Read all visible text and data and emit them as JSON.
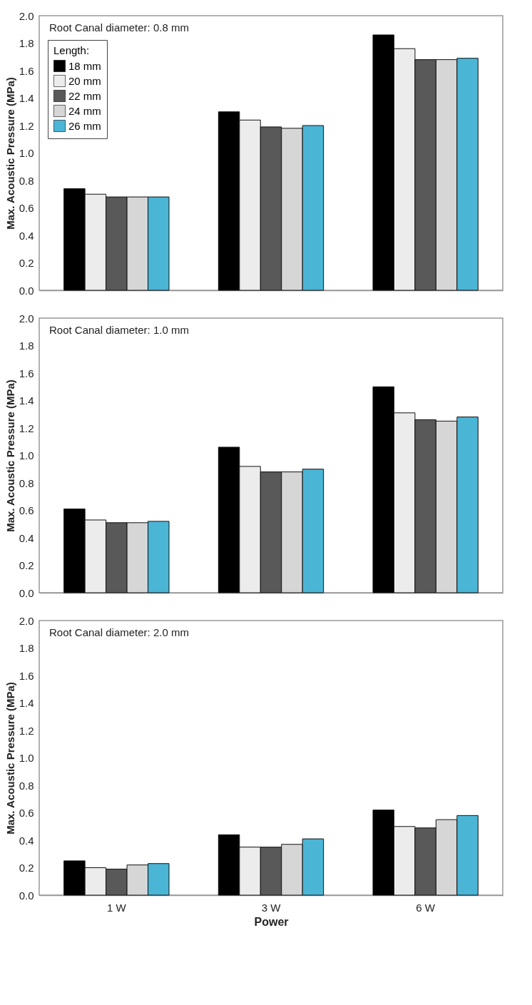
{
  "chart_data": [
    {
      "type": "bar",
      "categories": [
        null,
        null,
        null
      ],
      "ylabel": "Max. Acoustic Pressure (MPa)",
      "ylim": [
        0,
        2
      ],
      "yticks": [
        {
          "value": 0,
          "label": "0.0"
        },
        0.2,
        0.4,
        0.6,
        0.8,
        {
          "value": 1,
          "label": "1.0"
        },
        1.2,
        1.4,
        1.6,
        1.8,
        {
          "value": 2,
          "label": "2.0"
        }
      ],
      "grid": false,
      "tick_labels": "y",
      "legend": "top left",
      "legend_title": "Length:",
      "annotations": [
        "Root Canal diameter: 0.8 mm"
      ],
      "series": [
        {
          "name": "18 mm",
          "color": "#000000",
          "values": [
            0.74,
            1.3,
            1.86
          ]
        },
        {
          "name": "20 mm",
          "color": "#ececec",
          "values": [
            0.7,
            1.24,
            1.76
          ]
        },
        {
          "name": "22 mm",
          "color": "#595959",
          "values": [
            0.68,
            1.19,
            1.68
          ]
        },
        {
          "name": "24 mm",
          "color": "#d6d6d6",
          "values": [
            0.68,
            1.18,
            1.68
          ]
        },
        {
          "name": "26 mm",
          "color": "#4bb5d6",
          "values": [
            0.68,
            1.2,
            1.69
          ]
        }
      ]
    },
    {
      "type": "bar",
      "categories": [
        null,
        null,
        null
      ],
      "ylabel": "Max. Acoustic Pressure (MPa)",
      "ylim": [
        0,
        2
      ],
      "yticks": [
        {
          "value": 0,
          "label": "0.0"
        },
        0.2,
        0.4,
        0.6,
        0.8,
        {
          "value": 1,
          "label": "1.0"
        },
        1.2,
        1.4,
        1.6,
        1.8,
        {
          "value": 2,
          "label": "2.0"
        }
      ],
      "grid": false,
      "tick_labels": "y",
      "annotations": [
        "Root Canal diameter: 1.0 mm"
      ],
      "series": [
        {
          "color": "#000000",
          "values": [
            0.61,
            1.06,
            1.5
          ]
        },
        {
          "color": "#ececec",
          "values": [
            0.53,
            0.92,
            1.31
          ]
        },
        {
          "color": "#595959",
          "values": [
            0.51,
            0.88,
            1.26
          ]
        },
        {
          "color": "#d6d6d6",
          "values": [
            0.51,
            0.88,
            1.25
          ]
        },
        {
          "color": "#4bb5d6",
          "values": [
            0.52,
            0.9,
            1.28
          ]
        }
      ]
    },
    {
      "type": "bar",
      "categories": [
        "1 W",
        "3 W",
        "6 W"
      ],
      "xlabel": "Power",
      "ylabel": "Max. Acoustic Pressure (MPa)",
      "ylim": [
        0,
        2
      ],
      "yticks": [
        {
          "value": 0,
          "label": "0.0"
        },
        0.2,
        0.4,
        0.6,
        0.8,
        {
          "value": 1,
          "label": "1.0"
        },
        1.2,
        1.4,
        1.6,
        1.8,
        {
          "value": 2,
          "label": "2.0"
        }
      ],
      "grid": false,
      "annotations": [
        "Root Canal diameter: 2.0 mm"
      ],
      "series": [
        {
          "color": "#000000",
          "values": [
            0.25,
            0.44,
            0.62
          ]
        },
        {
          "color": "#ececec",
          "values": [
            0.2,
            0.35,
            0.5
          ]
        },
        {
          "color": "#595959",
          "values": [
            0.19,
            0.35,
            0.49
          ]
        },
        {
          "color": "#d6d6d6",
          "values": [
            0.22,
            0.37,
            0.55
          ]
        },
        {
          "color": "#4bb5d6",
          "values": [
            0.23,
            0.41,
            0.58
          ]
        }
      ]
    }
  ]
}
